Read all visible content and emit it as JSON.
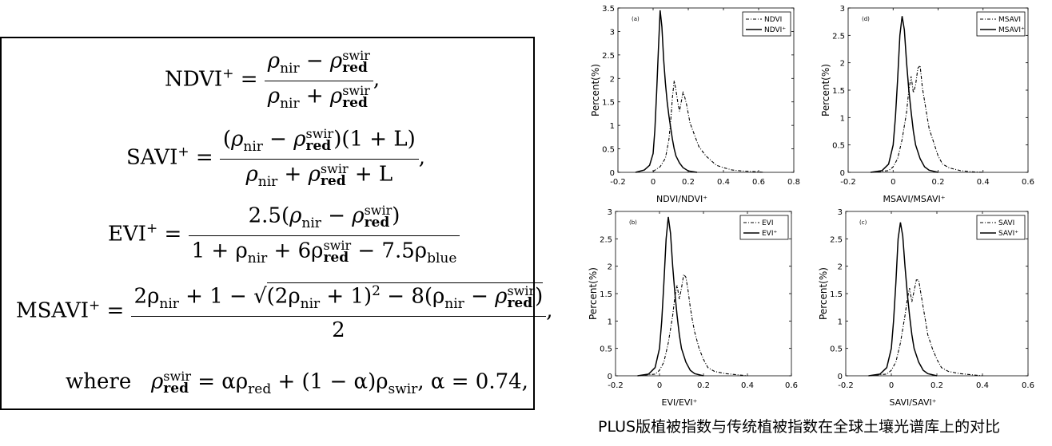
{
  "formulas": {
    "ndvi_lhs": "NDVI",
    "savi_lhs": "SAVI",
    "evi_lhs": "EVI",
    "msavi_lhs": "MSAVI",
    "plus": "+",
    "nir": "nir",
    "red": "red",
    "swir": "swir",
    "blue": "blue",
    "evi_num_coef": "2.5",
    "evi_den": "1 + ρ",
    "evi_coef_6": "6ρ",
    "evi_coef_75": "− 7.5ρ",
    "savi_tail": "(1 + L)",
    "savi_den_tail": "+ L",
    "msavi_num_head": "2ρ",
    "msavi_num_mid": "+ 1 −",
    "msavi_sqrt_a": "(2ρ",
    "msavi_sqrt_b": "+ 1)",
    "msavi_sqrt_c": "− 8(ρ",
    "msavi_den": "2",
    "where": "where",
    "where_rhs": "= αρ",
    "where_rhs2": "+ (1 − α)ρ",
    "swir_word": "swir",
    "alpha_val": ", α = 0.74,"
  },
  "caption": "PLUS版植被指数与传统植被指数在全球土壤光谱库上的对比",
  "chart_data": [
    {
      "type": "line",
      "panel_label": "(a)",
      "xlabel": "NDVI/NDVI⁺",
      "ylabel": "Percent(%)",
      "xlim": [
        -0.2,
        0.8
      ],
      "ylim": [
        0,
        3.5
      ],
      "xticks": [
        "-0.2",
        "0",
        "0.2",
        "0.4",
        "0.6",
        "0.8"
      ],
      "yticks": [
        "0",
        "0.5",
        "1",
        "1.5",
        "2",
        "2.5",
        "3",
        "3.5"
      ],
      "legend": [
        "NDVI",
        "NDVI⁺"
      ],
      "series": [
        {
          "name": "NDVI",
          "style": "dashdot",
          "x": [
            0.0,
            0.04,
            0.07,
            0.09,
            0.1,
            0.11,
            0.12,
            0.13,
            0.14,
            0.15,
            0.16,
            0.17,
            0.18,
            0.19,
            0.2,
            0.21,
            0.22,
            0.24,
            0.26,
            0.28,
            0.3,
            0.33,
            0.36,
            0.4,
            0.45,
            0.5,
            0.55,
            0.6,
            0.63
          ],
          "y": [
            0.02,
            0.12,
            0.3,
            0.7,
            1.1,
            1.6,
            1.95,
            1.75,
            1.5,
            1.3,
            1.5,
            1.7,
            1.6,
            1.45,
            1.25,
            1.05,
            0.95,
            0.75,
            0.55,
            0.45,
            0.35,
            0.25,
            0.15,
            0.1,
            0.05,
            0.03,
            0.02,
            0.01,
            0.0
          ]
        },
        {
          "name": "NDVI⁺",
          "style": "solid",
          "x": [
            -0.1,
            -0.05,
            -0.02,
            0.0,
            0.01,
            0.02,
            0.03,
            0.04,
            0.05,
            0.06,
            0.07,
            0.08,
            0.09,
            0.1,
            0.11,
            0.12,
            0.13,
            0.15,
            0.17,
            0.2,
            0.25
          ],
          "y": [
            0.0,
            0.05,
            0.15,
            0.4,
            0.9,
            1.7,
            2.6,
            3.45,
            3.1,
            2.4,
            1.9,
            1.5,
            1.2,
            0.95,
            0.7,
            0.5,
            0.35,
            0.2,
            0.1,
            0.03,
            0.0
          ]
        }
      ]
    },
    {
      "type": "line",
      "panel_label": "(d)",
      "xlabel": "MSAVI/MSAVI⁺",
      "ylabel": "Percent(%)",
      "xlim": [
        -0.2,
        0.6
      ],
      "ylim": [
        0,
        3
      ],
      "xticks": [
        "-0.2",
        "0",
        "0.2",
        "0.4",
        "0.6"
      ],
      "yticks": [
        "0",
        "0.5",
        "1",
        "1.5",
        "2",
        "2.5",
        "3"
      ],
      "legend": [
        "MSAVI",
        "MSAVI⁺"
      ],
      "series": [
        {
          "name": "MSAVI",
          "style": "dashdot",
          "x": [
            -0.1,
            -0.02,
            0.0,
            0.02,
            0.04,
            0.06,
            0.07,
            0.08,
            0.09,
            0.1,
            0.11,
            0.12,
            0.13,
            0.14,
            0.15,
            0.16,
            0.18,
            0.2,
            0.22,
            0.25,
            0.3,
            0.35,
            0.4
          ],
          "y": [
            0.0,
            0.03,
            0.1,
            0.25,
            0.6,
            1.1,
            1.5,
            1.75,
            1.45,
            1.6,
            1.9,
            1.95,
            1.55,
            1.3,
            1.05,
            0.8,
            0.55,
            0.3,
            0.15,
            0.08,
            0.03,
            0.01,
            0.0
          ]
        },
        {
          "name": "MSAVI⁺",
          "style": "solid",
          "x": [
            -0.1,
            -0.05,
            -0.02,
            0.0,
            0.01,
            0.02,
            0.03,
            0.04,
            0.05,
            0.06,
            0.07,
            0.08,
            0.09,
            0.1,
            0.12,
            0.14,
            0.16,
            0.2
          ],
          "y": [
            0.0,
            0.03,
            0.15,
            0.5,
            1.0,
            1.7,
            2.5,
            2.85,
            2.6,
            2.0,
            1.5,
            1.1,
            0.75,
            0.5,
            0.25,
            0.1,
            0.04,
            0.0
          ]
        }
      ]
    },
    {
      "type": "line",
      "panel_label": "(b)",
      "xlabel": "EVI/EVI⁺",
      "ylabel": "Percent(%)",
      "xlim": [
        -0.2,
        0.6
      ],
      "ylim": [
        0,
        3
      ],
      "xticks": [
        "-0.2",
        "0",
        "0.2",
        "0.4",
        "0.6"
      ],
      "yticks": [
        "0",
        "0.5",
        "1",
        "1.5",
        "2",
        "2.5",
        "3"
      ],
      "legend": [
        "EVI",
        "EVI⁺"
      ],
      "series": [
        {
          "name": "EVI",
          "style": "dashdot",
          "x": [
            -0.1,
            -0.02,
            0.0,
            0.02,
            0.04,
            0.06,
            0.07,
            0.08,
            0.09,
            0.1,
            0.11,
            0.12,
            0.13,
            0.14,
            0.15,
            0.16,
            0.18,
            0.2,
            0.22,
            0.25,
            0.3,
            0.35,
            0.4
          ],
          "y": [
            0.0,
            0.03,
            0.1,
            0.25,
            0.6,
            1.1,
            1.45,
            1.65,
            1.4,
            1.6,
            1.85,
            1.8,
            1.55,
            1.25,
            1.0,
            0.8,
            0.5,
            0.3,
            0.15,
            0.08,
            0.04,
            0.02,
            0.0
          ]
        },
        {
          "name": "EVI⁺",
          "style": "solid",
          "x": [
            -0.1,
            -0.05,
            -0.02,
            0.0,
            0.01,
            0.02,
            0.03,
            0.04,
            0.05,
            0.06,
            0.07,
            0.08,
            0.09,
            0.1,
            0.12,
            0.14,
            0.16,
            0.2
          ],
          "y": [
            0.0,
            0.03,
            0.15,
            0.5,
            1.0,
            1.7,
            2.5,
            2.9,
            2.6,
            2.0,
            1.5,
            1.1,
            0.75,
            0.5,
            0.25,
            0.1,
            0.04,
            0.0
          ]
        }
      ]
    },
    {
      "type": "line",
      "panel_label": "(c)",
      "xlabel": "SAVI/SAVI⁺",
      "ylabel": "Percent(%)",
      "xlim": [
        -0.2,
        0.6
      ],
      "ylim": [
        0,
        3
      ],
      "xticks": [
        "-0.2",
        "0",
        "0.2",
        "0.4",
        "0.6"
      ],
      "yticks": [
        "0",
        "0.5",
        "1",
        "1.5",
        "2",
        "2.5",
        "3"
      ],
      "legend": [
        "SAVI",
        "SAVI⁺"
      ],
      "series": [
        {
          "name": "SAVI",
          "style": "dashdot",
          "x": [
            -0.1,
            -0.02,
            0.0,
            0.02,
            0.04,
            0.06,
            0.07,
            0.08,
            0.09,
            0.1,
            0.11,
            0.12,
            0.13,
            0.14,
            0.15,
            0.16,
            0.18,
            0.2,
            0.22,
            0.25,
            0.3,
            0.35,
            0.4
          ],
          "y": [
            0.0,
            0.03,
            0.1,
            0.25,
            0.6,
            1.1,
            1.4,
            1.6,
            1.35,
            1.55,
            1.75,
            1.75,
            1.5,
            1.25,
            1.0,
            0.75,
            0.5,
            0.3,
            0.15,
            0.08,
            0.04,
            0.02,
            0.0
          ]
        },
        {
          "name": "SAVI⁺",
          "style": "solid",
          "x": [
            -0.1,
            -0.05,
            -0.02,
            0.0,
            0.01,
            0.02,
            0.03,
            0.04,
            0.05,
            0.06,
            0.07,
            0.08,
            0.09,
            0.1,
            0.12,
            0.14,
            0.16,
            0.2
          ],
          "y": [
            0.0,
            0.03,
            0.15,
            0.5,
            1.0,
            1.7,
            2.5,
            2.8,
            2.55,
            2.0,
            1.5,
            1.1,
            0.75,
            0.5,
            0.25,
            0.1,
            0.04,
            0.0
          ]
        }
      ]
    }
  ]
}
